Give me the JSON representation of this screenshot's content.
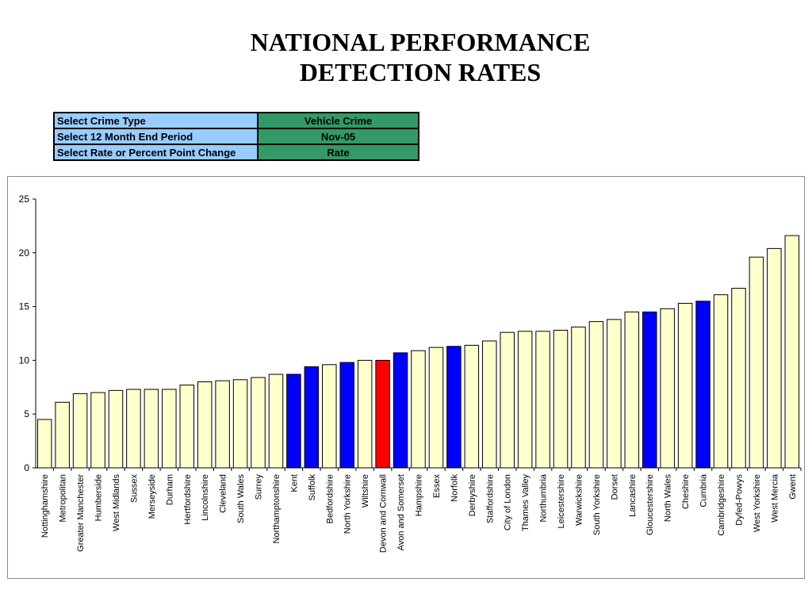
{
  "title": {
    "line1": "NATIONAL PERFORMANCE",
    "line2": "DETECTION RATES"
  },
  "controls": [
    {
      "label": "Select Crime Type",
      "value": "Vehicle Crime"
    },
    {
      "label": "Select 12 Month End Period",
      "value": "Nov-05"
    },
    {
      "label": "Select Rate or Percent Point Change",
      "value": "Rate"
    }
  ],
  "colors": {
    "default": "#ffffcc",
    "highlight": "#0000ff",
    "selected": "#ff0000",
    "label_bg": "#99ccff",
    "value_bg": "#339966"
  },
  "chart_data": {
    "type": "bar",
    "title": "",
    "xlabel": "",
    "ylabel": "",
    "ylim": [
      0,
      25
    ],
    "yticks": [
      0,
      5,
      10,
      15,
      20,
      25
    ],
    "grid": false,
    "categories": [
      "Nottinghamshire",
      "Metropolitan",
      "Greater Manchester",
      "Humberside",
      "West Midlands",
      "Sussex",
      "Merseyside",
      "Durham",
      "Hertfordshire",
      "Lincolnshire",
      "Cleveland",
      "South Wales",
      "Surrey",
      "Northamptonshire",
      "Kent",
      "Suffolk",
      "Bedfordshire",
      "North Yorkshire",
      "Wiltshire",
      "Devon and Cornwall",
      "Avon and Somerset",
      "Hampshire",
      "Essex",
      "Norfolk",
      "Derbyshire",
      "Staffordshire",
      "City of London",
      "Thames Valley",
      "Northumbria",
      "Leicestershire",
      "Warwickshire",
      "South Yorkshire",
      "Dorset",
      "Lancashire",
      "Gloucestershire",
      "North Wales",
      "Cheshire",
      "Cumbria",
      "Cambridgeshire",
      "Dyfed-Powys",
      "West Yorkshire",
      "West Mercia",
      "Gwent"
    ],
    "values": [
      4.5,
      6.1,
      6.9,
      7.0,
      7.2,
      7.3,
      7.3,
      7.3,
      7.7,
      8.0,
      8.1,
      8.2,
      8.4,
      8.7,
      8.7,
      9.4,
      9.6,
      9.8,
      10.0,
      10.0,
      10.7,
      10.9,
      11.2,
      11.3,
      11.4,
      11.8,
      12.6,
      12.7,
      12.7,
      12.8,
      13.1,
      13.6,
      13.8,
      14.5,
      14.5,
      14.8,
      15.3,
      15.5,
      16.1,
      16.7,
      19.6,
      20.4,
      21.6
    ],
    "bar_colors": [
      "default",
      "default",
      "default",
      "default",
      "default",
      "default",
      "default",
      "default",
      "default",
      "default",
      "default",
      "default",
      "default",
      "default",
      "highlight",
      "highlight",
      "default",
      "highlight",
      "default",
      "selected",
      "highlight",
      "default",
      "default",
      "highlight",
      "default",
      "default",
      "default",
      "default",
      "default",
      "default",
      "default",
      "default",
      "default",
      "default",
      "highlight",
      "default",
      "default",
      "highlight",
      "default",
      "default",
      "default",
      "default",
      "default"
    ]
  }
}
